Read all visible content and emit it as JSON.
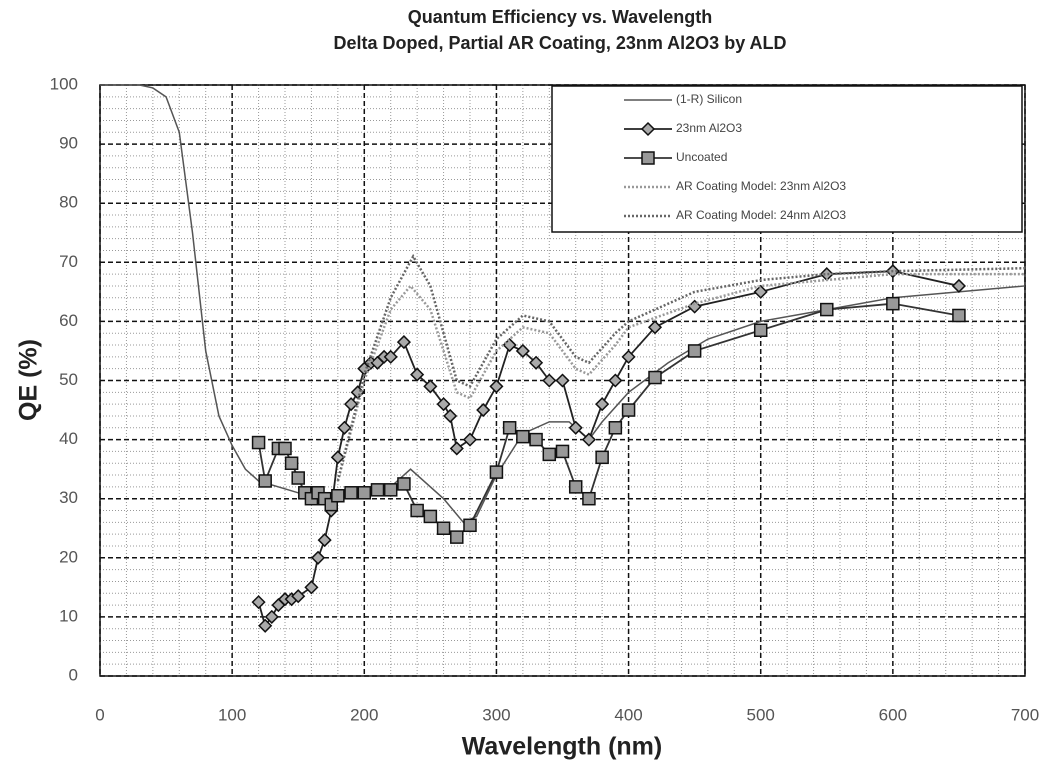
{
  "chart_data": {
    "type": "line",
    "title": "Quantum Efficiency vs. Wavelength",
    "subtitle": "Delta Doped, Partial AR Coating, 23nm Al2O3 by ALD",
    "x_label": "Wavelength (nm)",
    "y_label": "QE (%)",
    "xlim": [
      0,
      700
    ],
    "ylim": [
      0,
      100
    ],
    "xticks": [
      0,
      100,
      200,
      300,
      400,
      500,
      600,
      700
    ],
    "yticks": [
      0,
      10,
      20,
      30,
      40,
      50,
      60,
      70,
      80,
      90,
      100
    ],
    "grid": true,
    "legend": "top-right",
    "series": [
      {
        "name": "(1-R) Silicon",
        "color": "#555555",
        "dash": "solid",
        "marker": "none",
        "x": [
          0,
          30,
          40,
          50,
          60,
          70,
          80,
          90,
          100,
          110,
          120,
          150,
          180,
          200,
          220,
          235,
          260,
          275,
          285,
          300,
          320,
          340,
          355,
          370,
          380,
          400,
          430,
          460,
          500,
          550,
          600,
          700
        ],
        "values": [
          100,
          100,
          99.5,
          98,
          92,
          75,
          55,
          44,
          39,
          35,
          33,
          31,
          30,
          31,
          32,
          35,
          30,
          26,
          27,
          34,
          41,
          43,
          43,
          40,
          43,
          48,
          53,
          57,
          60,
          62,
          64,
          66
        ]
      },
      {
        "name": "23nm Al2O3",
        "color": "#222222",
        "dash": "solid",
        "marker": "diamond",
        "x": [
          120,
          125,
          130,
          135,
          140,
          145,
          150,
          160,
          165,
          170,
          175,
          180,
          185,
          190,
          195,
          200,
          205,
          210,
          215,
          220,
          230,
          240,
          250,
          260,
          265,
          270,
          280,
          290,
          300,
          310,
          320,
          330,
          340,
          350,
          360,
          370,
          380,
          390,
          400,
          420,
          450,
          500,
          550,
          600,
          650
        ],
        "values": [
          12.5,
          8.5,
          10,
          12,
          13,
          13,
          13.5,
          15,
          20,
          23,
          28,
          37,
          42,
          46,
          48,
          52,
          53,
          53,
          54,
          54,
          56.5,
          51,
          49,
          46,
          44,
          38.5,
          40,
          45,
          49,
          56,
          55,
          53,
          50,
          50,
          42,
          40,
          46,
          50,
          54,
          59,
          62.5,
          65,
          68,
          68.5,
          66
        ]
      },
      {
        "name": "Uncoated",
        "color": "#333333",
        "dash": "solid",
        "marker": "square",
        "x": [
          120,
          125,
          135,
          140,
          145,
          150,
          155,
          160,
          165,
          170,
          175,
          180,
          190,
          200,
          210,
          220,
          230,
          240,
          250,
          260,
          270,
          280,
          300,
          310,
          320,
          330,
          340,
          350,
          360,
          370,
          380,
          390,
          400,
          420,
          450,
          500,
          550,
          600,
          650
        ],
        "values": [
          39.5,
          33,
          38.5,
          38.5,
          36,
          33.5,
          31,
          30,
          31,
          30,
          29,
          30.5,
          31,
          31,
          31.5,
          31.5,
          32.5,
          28,
          27,
          25,
          23.5,
          25.5,
          34.5,
          42,
          40.5,
          40,
          37.5,
          38,
          32,
          30,
          37,
          42,
          45,
          50.5,
          55,
          58.5,
          62,
          63,
          61
        ]
      },
      {
        "name": "AR Coating Model: 23nm Al2O3",
        "color": "#999999",
        "dash": "dotted",
        "marker": "none",
        "x": [
          180,
          200,
          220,
          235,
          250,
          270,
          280,
          300,
          320,
          340,
          360,
          370,
          390,
          400,
          450,
          500,
          550,
          600,
          700
        ],
        "values": [
          33,
          50,
          62,
          66,
          62,
          48,
          47,
          55,
          59,
          58,
          52,
          51,
          56,
          59,
          63,
          66,
          67,
          68,
          68
        ]
      },
      {
        "name": "AR Coating Model: 24nm Al2O3",
        "color": "#666666",
        "dash": "dotted",
        "marker": "none",
        "x": [
          180,
          200,
          220,
          237,
          250,
          270,
          280,
          300,
          320,
          340,
          360,
          370,
          390,
          400,
          450,
          500,
          550,
          600,
          700
        ],
        "values": [
          33,
          51,
          64,
          71,
          66,
          50,
          49,
          57,
          61,
          60,
          54,
          53,
          58,
          60,
          65,
          67,
          68,
          68.5,
          69
        ]
      }
    ]
  }
}
